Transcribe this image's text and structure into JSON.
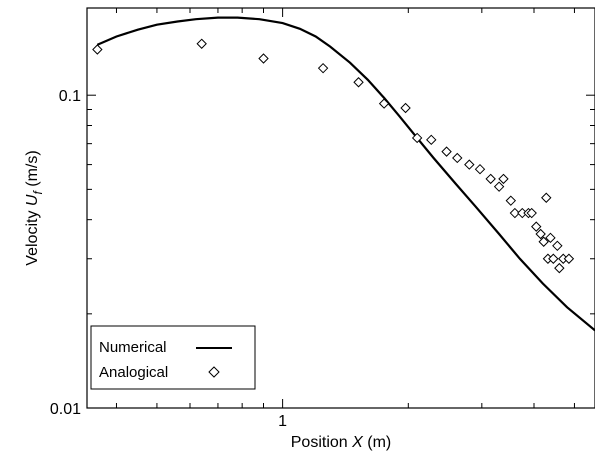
{
  "chart_data": {
    "type": "line",
    "title": "",
    "xlabel": {
      "prefix": "Position ",
      "symbol": "X",
      "suffix": " (m)"
    },
    "ylabel": {
      "prefix": "Velocity  ",
      "symbol": "U",
      "subscript": "f",
      "suffix": " (m/s)"
    },
    "x_scale": "log",
    "y_scale": "log",
    "xlim": [
      0.34,
      5.6
    ],
    "ylim": [
      0.01,
      0.19
    ],
    "x_ticks": [
      {
        "value": 1,
        "label": "1"
      }
    ],
    "y_ticks": [
      {
        "value": 0.1,
        "label": "0.1"
      },
      {
        "value": 0.01,
        "label": "0.01"
      }
    ],
    "grid": false,
    "legend_position": "bottom-left",
    "series": [
      {
        "name": "Numerical",
        "style": "line",
        "color": "#000000",
        "x": [
          0.36,
          0.4,
          0.45,
          0.5,
          0.56,
          0.62,
          0.7,
          0.78,
          0.88,
          1.0,
          1.1,
          1.2,
          1.3,
          1.45,
          1.6,
          1.75,
          1.9,
          2.1,
          2.3,
          2.6,
          2.9,
          3.3,
          3.7,
          4.2,
          4.8,
          5.6
        ],
        "y": [
          0.145,
          0.154,
          0.162,
          0.168,
          0.172,
          0.175,
          0.177,
          0.177,
          0.175,
          0.17,
          0.163,
          0.154,
          0.143,
          0.127,
          0.112,
          0.098,
          0.086,
          0.073,
          0.063,
          0.052,
          0.044,
          0.036,
          0.03,
          0.025,
          0.021,
          0.0177
        ]
      },
      {
        "name": "Analogical",
        "style": "diamond",
        "color": "#000000",
        "x": [
          0.36,
          0.64,
          0.9,
          1.25,
          1.52,
          1.75,
          1.97,
          2.1,
          2.27,
          2.47,
          2.62,
          2.8,
          2.97,
          3.15,
          3.3,
          3.38,
          3.52,
          3.6,
          3.75,
          3.88,
          3.95,
          4.05,
          4.15,
          4.22,
          4.28,
          4.32,
          4.38,
          4.45,
          4.55,
          4.6,
          4.7,
          4.85
        ],
        "y": [
          0.14,
          0.146,
          0.131,
          0.122,
          0.11,
          0.094,
          0.091,
          0.073,
          0.072,
          0.066,
          0.063,
          0.06,
          0.058,
          0.054,
          0.051,
          0.054,
          0.046,
          0.042,
          0.042,
          0.042,
          0.042,
          0.038,
          0.036,
          0.034,
          0.047,
          0.03,
          0.035,
          0.03,
          0.033,
          0.028,
          0.03,
          0.03
        ]
      }
    ]
  }
}
